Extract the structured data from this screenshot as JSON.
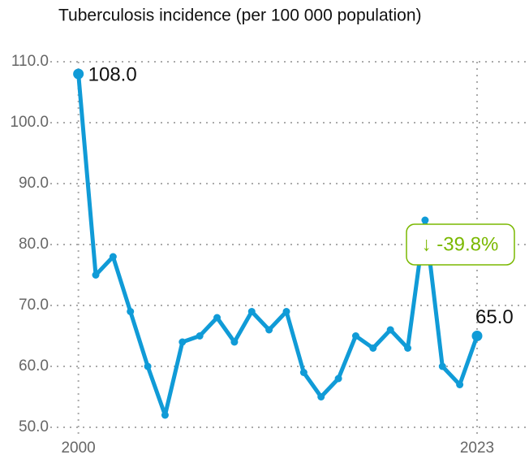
{
  "chart_data": {
    "type": "line",
    "title": "Tuberculosis incidence (per 100 000 population)",
    "x": [
      2000,
      2001,
      2002,
      2003,
      2004,
      2005,
      2006,
      2007,
      2008,
      2009,
      2010,
      2011,
      2012,
      2013,
      2014,
      2015,
      2016,
      2017,
      2018,
      2019,
      2020,
      2021,
      2022,
      2023
    ],
    "series": [
      {
        "name": "Tuberculosis incidence",
        "color": "#109bd7",
        "values": [
          108,
          75,
          78,
          69,
          60,
          52,
          64,
          65,
          68,
          64,
          69,
          66,
          69,
          59,
          55,
          58,
          65,
          63,
          66,
          63,
          84,
          60,
          57,
          65
        ]
      }
    ],
    "xlim": [
      1998.8,
      2025.2
    ],
    "xticks": [
      2000,
      2023
    ],
    "ylim": [
      50,
      110
    ],
    "yticks": [
      {
        "value": 50,
        "label": "50.0"
      },
      {
        "value": 60,
        "label": "60.0"
      },
      {
        "value": 70,
        "label": "70.0"
      },
      {
        "value": 80,
        "label": "80.0"
      },
      {
        "value": 90,
        "label": "90.0"
      },
      {
        "value": 100,
        "label": "100.0"
      },
      {
        "value": 110,
        "label": "110.0"
      }
    ],
    "grid": true,
    "annotations": [
      {
        "text": "108.0"
      },
      {
        "text": "65.0"
      },
      {
        "text": "↓ -39.8%",
        "color": "#7ab800"
      }
    ]
  }
}
